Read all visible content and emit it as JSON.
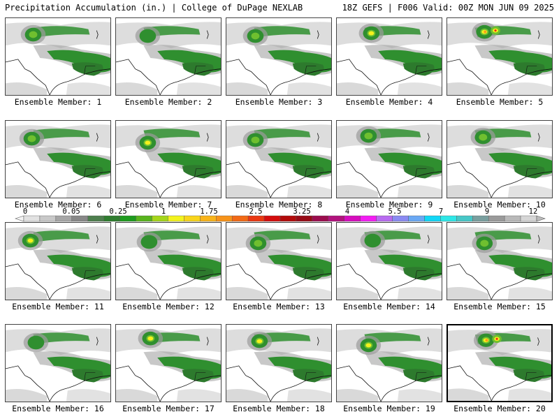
{
  "header": {
    "left": "Precipitation Accumulation (in.) | College of DuPage NEXLAB",
    "right": "18Z GEFS | F006 Valid: 00Z MON JUN 09 2025"
  },
  "colorbar": {
    "tick_labels": [
      "0",
      "0.05",
      "0.25",
      "1",
      "1.75",
      "2.5",
      "3.25",
      "4",
      "5.5",
      "7",
      "9",
      "12"
    ],
    "colors": [
      "#e2e2e2",
      "#c8c8c8",
      "#a6a6a6",
      "#888888",
      "#4e7f4e",
      "#2f7d2f",
      "#1e9b1e",
      "#58b41d",
      "#a5d61b",
      "#f3f31d",
      "#f9d51b",
      "#f9b41a",
      "#f7931a",
      "#f26a16",
      "#ea3812",
      "#d40d0d",
      "#b20b0b",
      "#970b17",
      "#9b0d4e",
      "#b1137d",
      "#d60dbd",
      "#f31df3",
      "#b86bf0",
      "#8a8af2",
      "#6aa8f4",
      "#12d7f6",
      "#2de7e7",
      "#47c7c7",
      "#7a9f9f",
      "#9a9a9a",
      "#b9b9b9",
      "#d6d6d6"
    ]
  },
  "map_colors": {
    "trace": "#cfcfcf",
    "light": "#9b9b9b",
    "green_dark": "#2d7a2d",
    "green": "#2f8f2f",
    "green_light": "#6fbf2f",
    "yellow": "#f5f11d",
    "orange": "#f7a01a",
    "red": "#ee2a16"
  },
  "panels": [
    {
      "label": "Ensemble Member: 1"
    },
    {
      "label": "Ensemble Member: 2"
    },
    {
      "label": "Ensemble Member: 3"
    },
    {
      "label": "Ensemble Member: 4"
    },
    {
      "label": "Ensemble Member: 5"
    },
    {
      "label": "Ensemble Member: 6"
    },
    {
      "label": "Ensemble Member: 7"
    },
    {
      "label": "Ensemble Member: 8"
    },
    {
      "label": "Ensemble Member: 9"
    },
    {
      "label": "Ensemble Member: 10"
    },
    {
      "label": "Ensemble Member: 11"
    },
    {
      "label": "Ensemble Member: 12"
    },
    {
      "label": "Ensemble Member: 13"
    },
    {
      "label": "Ensemble Member: 14"
    },
    {
      "label": "Ensemble Member: 15"
    },
    {
      "label": "Ensemble Member: 16"
    },
    {
      "label": "Ensemble Member: 17"
    },
    {
      "label": "Ensemble Member: 18"
    },
    {
      "label": "Ensemble Member: 19"
    },
    {
      "label": "Ensemble Member: 20"
    }
  ]
}
